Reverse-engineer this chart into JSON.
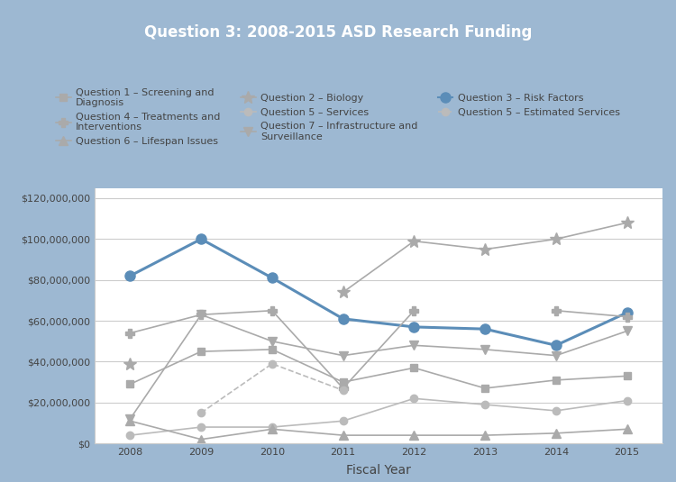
{
  "title": "Question 3: 2008-2015 ASD Research Funding",
  "xlabel": "Fiscal Year",
  "years": [
    2008,
    2009,
    2010,
    2011,
    2012,
    2013,
    2014,
    2015
  ],
  "series": {
    "q1_screening": {
      "label": "Question 1 – Screening and\nDiagnosis",
      "values": [
        29000000,
        45000000,
        46000000,
        30000000,
        37000000,
        27000000,
        31000000,
        33000000
      ],
      "color": "#aaaaaa",
      "marker": "s",
      "linestyle": "-",
      "linewidth": 1.2,
      "markersize": 6
    },
    "q2_biology": {
      "label": "Question 2 – Biology",
      "values": [
        39000000,
        null,
        null,
        74000000,
        99000000,
        95000000,
        100000000,
        108000000
      ],
      "color": "#aaaaaa",
      "marker": "*",
      "linestyle": "-",
      "linewidth": 1.2,
      "markersize": 10
    },
    "q3_risk": {
      "label": "Question 3 – Risk Factors",
      "values": [
        82000000,
        100000000,
        81000000,
        61000000,
        57000000,
        56000000,
        48000000,
        64000000
      ],
      "color": "#5b8db8",
      "marker": "o",
      "linestyle": "-",
      "linewidth": 2.2,
      "markersize": 8
    },
    "q4_treatments": {
      "label": "Question 4 – Treatments and\nInterventions",
      "values": [
        54000000,
        63000000,
        65000000,
        27000000,
        65000000,
        null,
        65000000,
        62000000
      ],
      "color": "#aaaaaa",
      "marker": "P",
      "linestyle": "-",
      "linewidth": 1.2,
      "markersize": 7
    },
    "q5_services": {
      "label": "Question 5 – Services",
      "values": [
        4000000,
        8000000,
        8000000,
        11000000,
        22000000,
        19000000,
        16000000,
        21000000
      ],
      "color": "#bbbbbb",
      "marker": "o",
      "linestyle": "-",
      "linewidth": 1.2,
      "markersize": 6
    },
    "q5_estimated": {
      "label": "Question 5 – Estimated Services",
      "values": [
        null,
        15000000,
        39000000,
        26000000,
        null,
        null,
        null,
        null
      ],
      "color": "#bbbbbb",
      "marker": "o",
      "linestyle": "--",
      "linewidth": 1.2,
      "markersize": 6
    },
    "q6_lifespan": {
      "label": "Question 6 – Lifespan Issues",
      "values": [
        11000000,
        2000000,
        7000000,
        4000000,
        4000000,
        4000000,
        5000000,
        7000000
      ],
      "color": "#aaaaaa",
      "marker": "^",
      "linestyle": "-",
      "linewidth": 1.2,
      "markersize": 7
    },
    "q7_infrastructure": {
      "label": "Question 7 – Infrastructure and\nSurveillance",
      "values": [
        12000000,
        63000000,
        50000000,
        43000000,
        48000000,
        46000000,
        43000000,
        55000000
      ],
      "color": "#aaaaaa",
      "marker": "v",
      "linestyle": "-",
      "linewidth": 1.2,
      "markersize": 7
    }
  },
  "ylim": [
    0,
    125000000
  ],
  "yticks": [
    0,
    20000000,
    40000000,
    60000000,
    80000000,
    100000000,
    120000000
  ],
  "outer_bg_color": "#9db8d2",
  "inner_bg_color": "#ffffff",
  "title_bg_color": "#7a9fc0",
  "title_fontsize": 12,
  "axis_label_fontsize": 10,
  "tick_fontsize": 8,
  "legend_fontsize": 8
}
